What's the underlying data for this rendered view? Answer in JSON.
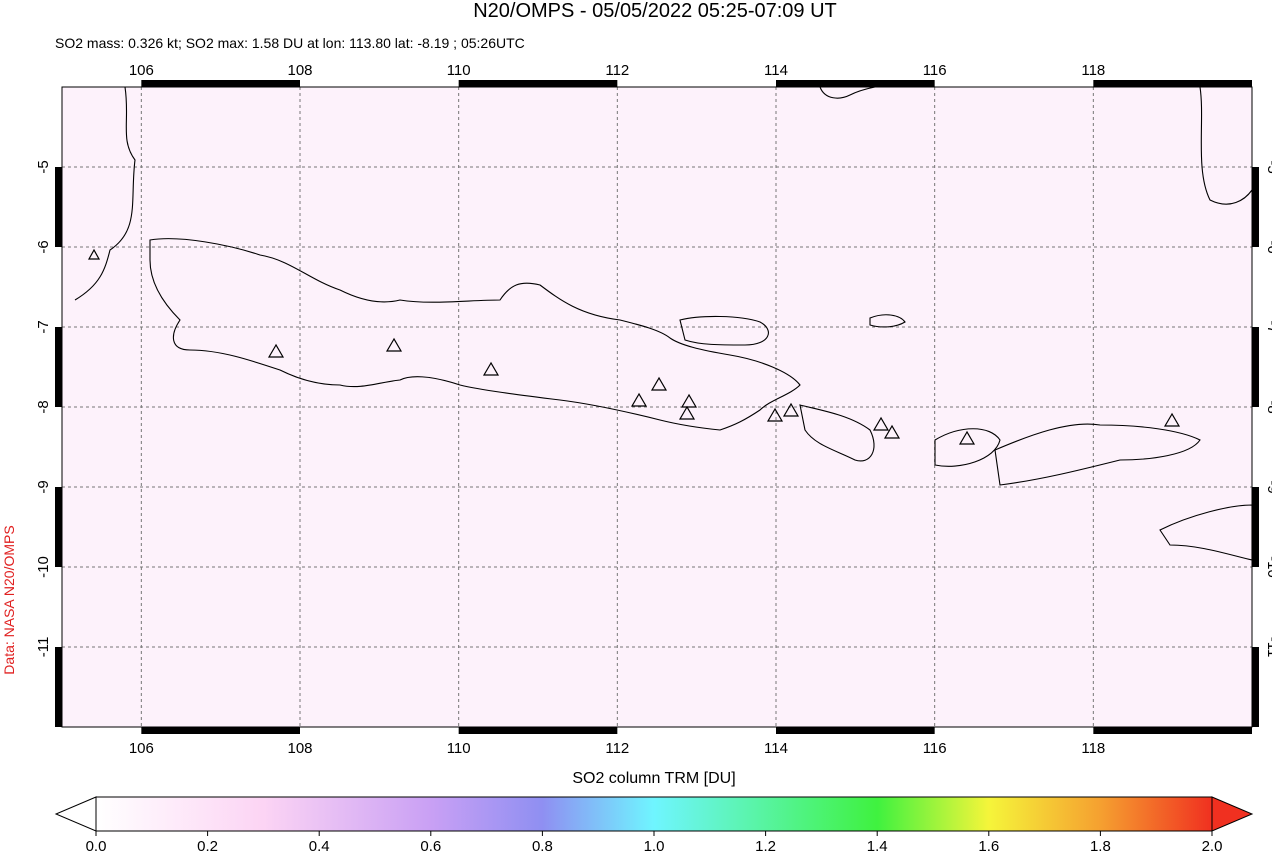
{
  "header": {
    "title": "N20/OMPS - 05/05/2022 05:25-07:09 UT",
    "subtitle": "SO2 mass: 0.326 kt; SO2 max: 1.58 DU at lon: 113.80 lat: -8.19 ; 05:26UTC"
  },
  "map": {
    "xlim": [
      105,
      120
    ],
    "ylim": [
      -12,
      -4
    ],
    "xticks": [
      106,
      108,
      110,
      112,
      114,
      116,
      118
    ],
    "yticks": [
      -5,
      -6,
      -7,
      -8,
      -9,
      -10,
      -11
    ],
    "credit": "Data: NASA N20/OMPS"
  },
  "colorbar": {
    "label": "SO2 column TRM [DU]",
    "lim": [
      0,
      2
    ],
    "ticks": [
      {
        "value": 0,
        "label": "0.0"
      },
      {
        "value": 0.2,
        "label": "0.2"
      },
      {
        "value": 0.4,
        "label": "0.4"
      },
      {
        "value": 0.6,
        "label": "0.6"
      },
      {
        "value": 0.8,
        "label": "0.8"
      },
      {
        "value": 1,
        "label": "1.0"
      },
      {
        "value": 1.2,
        "label": "1.2"
      },
      {
        "value": 1.4,
        "label": "1.4"
      },
      {
        "value": 1.6,
        "label": "1.6"
      },
      {
        "value": 1.8,
        "label": "1.8"
      },
      {
        "value": 2,
        "label": "2.0"
      }
    ]
  }
}
